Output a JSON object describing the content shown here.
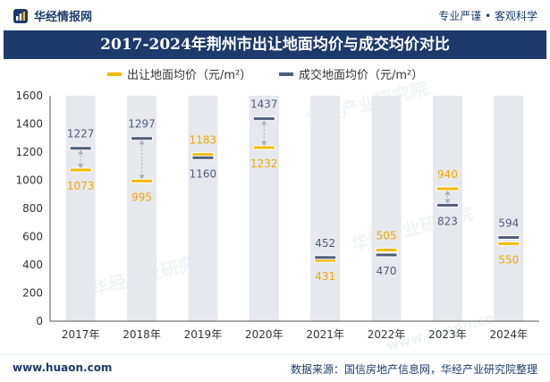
{
  "header": {
    "brand": "华经情报网",
    "tagline": "专业严谨 • 客观科学"
  },
  "watermark": {
    "text": "华经产业研究院",
    "url": "www.huaon.com"
  },
  "footer": {
    "website": "www.huaon.com",
    "source": "数据来源：国信房地产信息网，华经产业研究院整理"
  },
  "colors": {
    "title_bg": "#1c3a6b",
    "series_supply": "#f5b800",
    "series_deal": "#4f5e7b",
    "band": "#e6e8ee",
    "arrow": "#b0b0b0"
  },
  "chart_data": {
    "type": "range-marker",
    "title": "2017-2024年荆州市出让地面均价与成交均价对比",
    "xlabel": "",
    "ylabel": "",
    "ylim": [
      0,
      1600
    ],
    "yticks": [
      0,
      200,
      400,
      600,
      800,
      1000,
      1200,
      1400,
      1600
    ],
    "legend_position": "top-center",
    "categories": [
      "2017年",
      "2018年",
      "2019年",
      "2020年",
      "2021年",
      "2022年",
      "2023年",
      "2024年"
    ],
    "series": [
      {
        "name": "出让地面均价（元/m²）",
        "color": "#f5b800",
        "values": [
          1073,
          995,
          1183,
          1232,
          431,
          505,
          940,
          550
        ]
      },
      {
        "name": "成交地面均价（元/m²）",
        "color": "#4f5e7b",
        "values": [
          1227,
          1297,
          1160,
          1437,
          452,
          470,
          823,
          594
        ]
      }
    ]
  }
}
